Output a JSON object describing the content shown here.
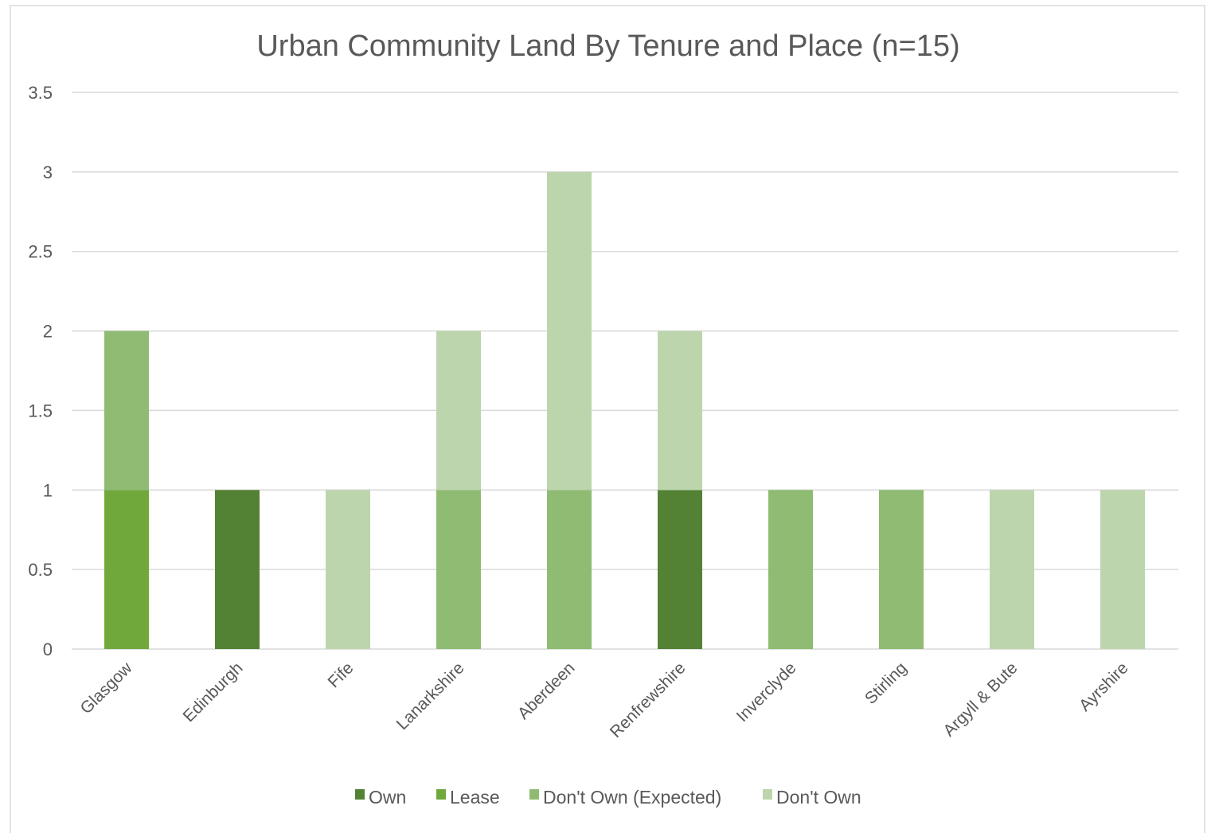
{
  "chart_data": {
    "type": "bar",
    "stacked": true,
    "title": "Urban Community Land By Tenure and Place (n=15)",
    "xlabel": "",
    "ylabel": "",
    "ylim": [
      0,
      3.5
    ],
    "yticks": [
      "0",
      "0.5",
      "1",
      "1.5",
      "2",
      "2.5",
      "3",
      "3.5"
    ],
    "grid": true,
    "legend_position": "bottom",
    "categories": [
      "Glasgow",
      "Edinburgh",
      "Fife",
      "Lanarkshire",
      "Aberdeen",
      "Renfrewshire",
      "Inverclyde",
      "Stirling",
      "Argyll & Bute",
      "Ayrshire"
    ],
    "series": [
      {
        "name": "Own",
        "color": "#548235",
        "values": [
          0,
          1,
          0,
          0,
          0,
          1,
          0,
          0,
          0,
          0
        ]
      },
      {
        "name": "Lease",
        "color": "#70a83c",
        "values": [
          1,
          0,
          0,
          0,
          0,
          0,
          0,
          0,
          0,
          0
        ]
      },
      {
        "name": "Don't Own (Expected)",
        "color": "#8fbb73",
        "values": [
          1,
          0,
          0,
          1,
          1,
          0,
          1,
          1,
          0,
          0
        ]
      },
      {
        "name": "Don't Own",
        "color": "#bdd5ad",
        "values": [
          0,
          0,
          1,
          1,
          2,
          1,
          0,
          0,
          1,
          1
        ]
      }
    ]
  }
}
